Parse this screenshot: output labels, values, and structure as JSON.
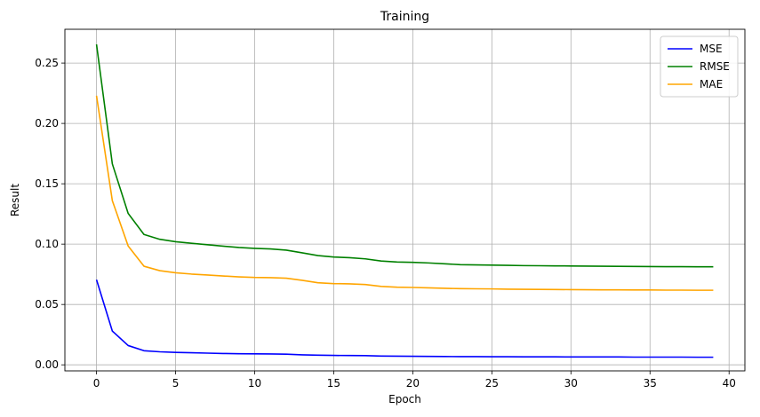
{
  "chart_data": {
    "type": "line",
    "title": "Training",
    "xlabel": "Epoch",
    "ylabel": "Result",
    "xlim": [
      -2,
      41
    ],
    "ylim": [
      -0.005,
      0.278
    ],
    "x_ticks": [
      0,
      5,
      10,
      15,
      20,
      25,
      30,
      35,
      40
    ],
    "y_ticks": [
      0.0,
      0.05,
      0.1,
      0.15,
      0.2,
      0.25
    ],
    "x_tick_labels": [
      "0",
      "5",
      "10",
      "15",
      "20",
      "25",
      "30",
      "35",
      "40"
    ],
    "y_tick_labels": [
      "0.00",
      "0.05",
      "0.10",
      "0.15",
      "0.20",
      "0.25"
    ],
    "grid": true,
    "legend_position": "top-right",
    "x": [
      0,
      1,
      2,
      3,
      4,
      5,
      6,
      7,
      8,
      9,
      10,
      11,
      12,
      13,
      14,
      15,
      16,
      17,
      18,
      19,
      20,
      21,
      22,
      23,
      24,
      25,
      26,
      27,
      28,
      29,
      30,
      31,
      32,
      33,
      34,
      35,
      36,
      37,
      38,
      39
    ],
    "series": [
      {
        "name": "MSE",
        "color": "#0000ff",
        "values": [
          0.0705,
          0.028,
          0.016,
          0.0117,
          0.0108,
          0.0103,
          0.01,
          0.0097,
          0.0094,
          0.0092,
          0.0091,
          0.009,
          0.0088,
          0.0083,
          0.008,
          0.0078,
          0.0077,
          0.0076,
          0.0073,
          0.0072,
          0.0071,
          0.007,
          0.0069,
          0.0068,
          0.0068,
          0.0067,
          0.0067,
          0.0066,
          0.0066,
          0.0066,
          0.0065,
          0.0065,
          0.0065,
          0.0065,
          0.0064,
          0.0064,
          0.0064,
          0.0064,
          0.0063,
          0.0063
        ]
      },
      {
        "name": "RMSE",
        "color": "#008000",
        "values": [
          0.2655,
          0.1665,
          0.1255,
          0.108,
          0.104,
          0.102,
          0.1007,
          0.0995,
          0.0983,
          0.0972,
          0.0965,
          0.096,
          0.095,
          0.0928,
          0.0905,
          0.0893,
          0.0888,
          0.0878,
          0.086,
          0.0852,
          0.0849,
          0.0844,
          0.0837,
          0.083,
          0.0828,
          0.0826,
          0.0824,
          0.0822,
          0.0821,
          0.082,
          0.0819,
          0.0818,
          0.0817,
          0.0816,
          0.0815,
          0.0814,
          0.0813,
          0.0813,
          0.0812,
          0.0812
        ]
      },
      {
        "name": "MAE",
        "color": "#ffa500",
        "values": [
          0.223,
          0.136,
          0.0985,
          0.0817,
          0.078,
          0.0763,
          0.0752,
          0.0744,
          0.0736,
          0.0729,
          0.0724,
          0.0722,
          0.0718,
          0.07,
          0.068,
          0.0673,
          0.0671,
          0.0665,
          0.065,
          0.0643,
          0.0641,
          0.0638,
          0.0634,
          0.0631,
          0.063,
          0.0629,
          0.0627,
          0.0626,
          0.0625,
          0.0624,
          0.0623,
          0.0622,
          0.0621,
          0.0621,
          0.062,
          0.062,
          0.0619,
          0.0619,
          0.0618,
          0.0618
        ]
      }
    ]
  }
}
